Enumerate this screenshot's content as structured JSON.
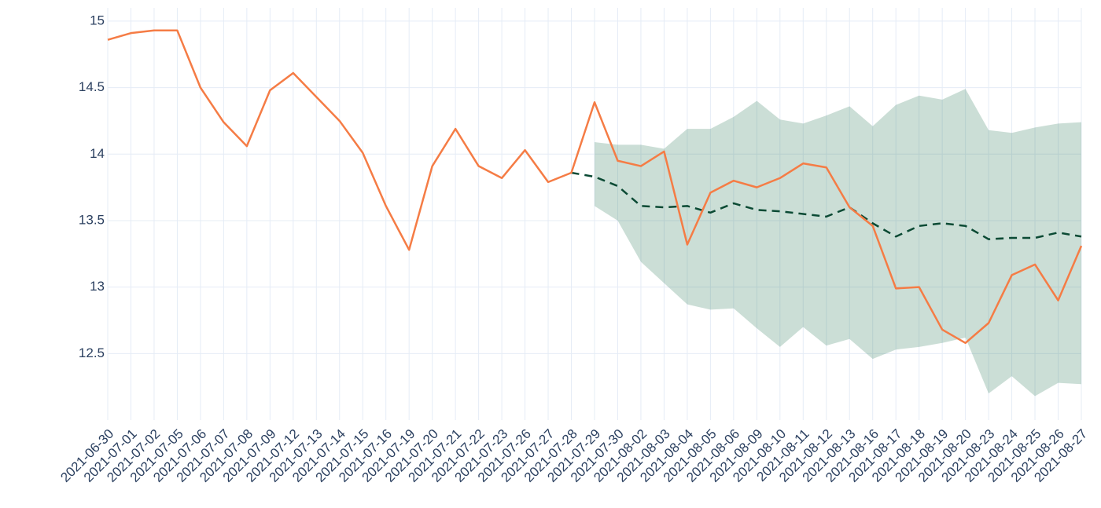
{
  "chart_data": {
    "type": "line",
    "categories": [
      "2021-06-30",
      "2021-07-01",
      "2021-07-02",
      "2021-07-05",
      "2021-07-06",
      "2021-07-07",
      "2021-07-08",
      "2021-07-09",
      "2021-07-12",
      "2021-07-13",
      "2021-07-14",
      "2021-07-15",
      "2021-07-16",
      "2021-07-19",
      "2021-07-20",
      "2021-07-21",
      "2021-07-22",
      "2021-07-23",
      "2021-07-26",
      "2021-07-27",
      "2021-07-28",
      "2021-07-29",
      "2021-07-30",
      "2021-08-02",
      "2021-08-03",
      "2021-08-04",
      "2021-08-05",
      "2021-08-06",
      "2021-08-09",
      "2021-08-10",
      "2021-08-11",
      "2021-08-12",
      "2021-08-13",
      "2021-08-16",
      "2021-08-17",
      "2021-08-18",
      "2021-08-19",
      "2021-08-20",
      "2021-08-23",
      "2021-08-24",
      "2021-08-25",
      "2021-08-26",
      "2021-08-27"
    ],
    "series": [
      {
        "color": "#f57c45",
        "dash": false,
        "values": [
          14.86,
          14.91,
          14.93,
          14.93,
          14.5,
          14.24,
          14.06,
          14.48,
          14.61,
          14.43,
          14.25,
          14.01,
          13.61,
          13.28,
          13.91,
          14.19,
          13.91,
          13.82,
          14.03,
          13.79,
          13.86,
          14.39,
          13.95,
          13.91,
          14.02,
          13.32,
          13.71,
          13.8,
          13.75,
          13.82,
          13.93,
          13.9,
          13.6,
          13.46,
          12.99,
          13.0,
          12.68,
          12.58,
          12.73,
          13.09,
          13.17,
          12.9,
          13.31
        ]
      },
      {
        "color": "#0b4a34",
        "dash": true,
        "values": [
          null,
          null,
          null,
          null,
          null,
          null,
          null,
          null,
          null,
          null,
          null,
          null,
          null,
          null,
          null,
          null,
          null,
          null,
          null,
          null,
          13.86,
          13.83,
          13.76,
          13.61,
          13.6,
          13.61,
          13.56,
          13.63,
          13.58,
          13.57,
          13.55,
          13.53,
          13.6,
          13.48,
          13.38,
          13.46,
          13.48,
          13.46,
          13.36,
          13.37,
          13.37,
          13.41,
          13.38
        ]
      }
    ],
    "band": {
      "color": "#2e7d5b",
      "upper": [
        null,
        null,
        null,
        null,
        null,
        null,
        null,
        null,
        null,
        null,
        null,
        null,
        null,
        null,
        null,
        null,
        null,
        null,
        null,
        null,
        null,
        14.09,
        14.07,
        14.07,
        14.04,
        14.19,
        14.19,
        14.28,
        14.4,
        14.26,
        14.23,
        14.29,
        14.36,
        14.21,
        14.37,
        14.44,
        14.41,
        14.49,
        14.18,
        14.16,
        14.2,
        14.23,
        14.24
      ],
      "lower": [
        null,
        null,
        null,
        null,
        null,
        null,
        null,
        null,
        null,
        null,
        null,
        null,
        null,
        null,
        null,
        null,
        null,
        null,
        null,
        null,
        null,
        13.61,
        13.5,
        13.19,
        13.03,
        12.87,
        12.83,
        12.84,
        12.69,
        12.55,
        12.7,
        12.56,
        12.61,
        12.46,
        12.53,
        12.55,
        12.58,
        12.62,
        12.2,
        12.33,
        12.18,
        12.28,
        12.27
      ]
    },
    "ylim": [
      12.0,
      15.1
    ],
    "yticks": [
      12.5,
      13,
      13.5,
      14,
      14.5,
      15
    ],
    "grid": true
  }
}
